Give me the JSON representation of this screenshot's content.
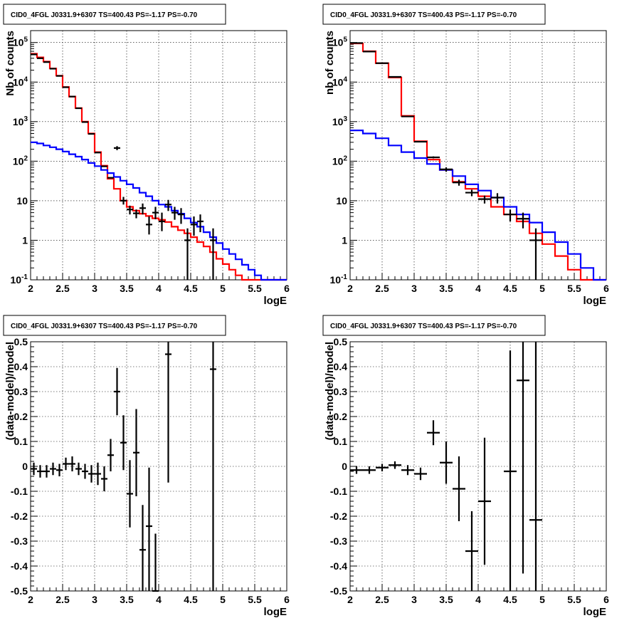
{
  "colors": {
    "model": "#ff0000",
    "background": "#0000ff",
    "data": "#000000"
  },
  "chart_data": [
    {
      "id": "p1",
      "type": "line",
      "title": "CID0_4FGL J0331.9+6307 TS=400.43 PS=-1.17 PS=-0.70",
      "xlabel": "logE",
      "ylabel": "Nb of counts",
      "log_y": true,
      "grid": true,
      "xlim": [
        2,
        6
      ],
      "ylim": [
        0.1,
        200000
      ],
      "x_ticks": [
        2,
        2.5,
        3,
        3.5,
        4,
        4.5,
        5,
        5.5,
        6
      ],
      "x_tick_labels": [
        "2",
        "2.5",
        "3",
        "3.5",
        "4",
        "4.5",
        "5",
        "5.5",
        "6"
      ],
      "y_ticks": [
        0.1,
        1,
        10,
        100,
        1000,
        10000,
        100000
      ],
      "y_tick_labels": [
        "10^-1",
        "1",
        "10",
        "10^2",
        "10^3",
        "10^4",
        "10^5"
      ],
      "bin_width": 0.1,
      "series": [
        {
          "role": "model",
          "color": "#ff0000",
          "x": [
            2.0,
            2.1,
            2.2,
            2.3,
            2.4,
            2.5,
            2.6,
            2.7,
            2.8,
            2.9,
            3.0,
            3.1,
            3.2,
            3.3,
            3.4,
            3.5,
            3.6,
            3.7,
            3.8,
            3.9,
            4.0,
            4.1,
            4.2,
            4.3,
            4.4,
            4.5,
            4.6,
            4.7,
            4.8,
            4.9,
            5.0,
            5.1,
            5.2,
            5.3,
            5.4,
            5.5,
            5.6,
            5.7,
            5.8,
            5.9
          ],
          "values": [
            52000,
            42000,
            33000,
            22000,
            14500,
            7500,
            4300,
            2200,
            1000,
            500,
            170,
            77,
            36,
            20,
            10,
            7,
            5.6,
            4.7,
            4.1,
            3.6,
            3.3,
            2.9,
            2.2,
            1.8,
            1.5,
            1.2,
            0.9,
            0.7,
            0.5,
            0.34,
            0.25,
            0.18,
            0.13,
            0.1,
            0.1,
            0.1,
            0.1,
            0.1,
            0.1,
            0.1
          ]
        },
        {
          "role": "background",
          "color": "#0000ff",
          "x": [
            2.0,
            2.1,
            2.2,
            2.3,
            2.4,
            2.5,
            2.6,
            2.7,
            2.8,
            2.9,
            3.0,
            3.1,
            3.2,
            3.3,
            3.4,
            3.5,
            3.6,
            3.7,
            3.8,
            3.9,
            4.0,
            4.1,
            4.2,
            4.3,
            4.4,
            4.5,
            4.6,
            4.7,
            4.8,
            4.9,
            5.0,
            5.1,
            5.2,
            5.3,
            5.4,
            5.5,
            5.6,
            5.7,
            5.8,
            5.9
          ],
          "values": [
            300,
            280,
            250,
            225,
            200,
            175,
            150,
            130,
            110,
            90,
            75,
            60,
            50,
            40,
            32,
            26,
            21,
            16,
            13,
            10,
            8,
            7,
            5.6,
            4.7,
            3.6,
            2.8,
            2.2,
            1.6,
            1.2,
            0.85,
            0.6,
            0.45,
            0.33,
            0.24,
            0.18,
            0.13,
            0.1,
            0.1,
            0.1,
            0.1
          ]
        },
        {
          "role": "data",
          "type": "scatter",
          "color": "#000000",
          "x": [
            2.05,
            2.15,
            2.25,
            2.35,
            2.45,
            2.55,
            2.65,
            2.75,
            2.85,
            2.95,
            3.05,
            3.15,
            3.25,
            3.35,
            3.45,
            3.55,
            3.65,
            3.75,
            3.85,
            3.95,
            4.05,
            4.15,
            4.25,
            4.35,
            4.45,
            4.55,
            4.65,
            4.85
          ],
          "values": [
            50000,
            40000,
            32000,
            21800,
            14300,
            7400,
            4300,
            2180,
            975,
            490,
            165,
            74,
            38,
            215,
            10,
            6,
            4.8,
            6.5,
            2.5,
            5,
            3,
            8,
            5,
            4.5,
            1,
            2.5,
            3,
            1
          ],
          "y_low": [
            50000,
            40000,
            32000,
            21800,
            14300,
            7400,
            4300,
            2180,
            975,
            490,
            165,
            74,
            38,
            190,
            8,
            4.5,
            3.6,
            4.5,
            1.4,
            3.4,
            1.7,
            5.5,
            3.3,
            2.6,
            0.1,
            1.3,
            1.6,
            0.1
          ],
          "y_high": [
            50000,
            40000,
            32000,
            21800,
            14300,
            7400,
            4300,
            2180,
            975,
            490,
            165,
            74,
            38,
            240,
            12.5,
            7.5,
            6,
            8.5,
            4,
            7,
            5,
            10.5,
            7,
            6.5,
            2,
            4,
            4.5,
            2
          ]
        }
      ]
    },
    {
      "id": "p2",
      "type": "line",
      "title": "CID0_4FGL J0331.9+6307 TS=400.43 PS=-1.17 PS=-0.70",
      "xlabel": "logE",
      "ylabel": "nb of counts",
      "log_y": true,
      "grid": true,
      "xlim": [
        2,
        6
      ],
      "ylim": [
        0.1,
        200000
      ],
      "x_ticks": [
        2,
        2.5,
        3,
        3.5,
        4,
        4.5,
        5,
        5.5,
        6
      ],
      "x_tick_labels": [
        "2",
        "2.5",
        "3",
        "3.5",
        "4",
        "4.5",
        "5",
        "5.5",
        "6"
      ],
      "y_ticks": [
        0.1,
        1,
        10,
        100,
        1000,
        10000,
        100000
      ],
      "y_tick_labels": [
        "10^-1",
        "1",
        "10",
        "10^2",
        "10^3",
        "10^4",
        "10^5"
      ],
      "bin_width": 0.2,
      "series": [
        {
          "role": "model",
          "color": "#ff0000",
          "x": [
            2.0,
            2.2,
            2.4,
            2.6,
            2.8,
            3.0,
            3.2,
            3.4,
            3.6,
            3.8,
            4.0,
            4.2,
            4.4,
            4.6,
            4.8,
            5.0,
            5.2,
            5.4,
            5.6,
            5.8
          ],
          "values": [
            95000,
            60000,
            30000,
            13000,
            1400,
            320,
            110,
            60,
            30,
            20,
            13,
            7,
            4.5,
            3,
            1.5,
            0.8,
            0.4,
            0.18,
            0.1,
            0.1
          ]
        },
        {
          "role": "background",
          "color": "#0000ff",
          "x": [
            2.0,
            2.2,
            2.4,
            2.6,
            2.8,
            3.0,
            3.2,
            3.4,
            3.6,
            3.8,
            4.0,
            4.2,
            4.4,
            4.6,
            4.8,
            5.0,
            5.2,
            5.4,
            5.6,
            5.8
          ],
          "values": [
            600,
            500,
            380,
            250,
            170,
            120,
            85,
            60,
            42,
            26,
            18,
            12,
            7,
            4.5,
            2.8,
            1.6,
            0.9,
            0.45,
            0.2,
            0.1
          ]
        },
        {
          "role": "data",
          "type": "scatter",
          "color": "#000000",
          "x": [
            2.1,
            2.3,
            2.5,
            2.7,
            2.9,
            3.1,
            3.3,
            3.5,
            3.7,
            3.9,
            4.1,
            4.3,
            4.5,
            4.7,
            4.9
          ],
          "values": [
            97000,
            59000,
            30000,
            13500,
            1350,
            310,
            125,
            62,
            29,
            16,
            11,
            12,
            4.5,
            3.5,
            1
          ],
          "y_low": [
            97000,
            59000,
            30000,
            13500,
            1350,
            310,
            118,
            54,
            24,
            13,
            8.5,
            8.5,
            3,
            2,
            0.1
          ],
          "y_high": [
            97000,
            59000,
            30000,
            13500,
            1350,
            310,
            132,
            70,
            34,
            19,
            13.5,
            15.5,
            6,
            5,
            2
          ]
        }
      ]
    },
    {
      "id": "p3",
      "type": "scatter",
      "title": "CID0_4FGL J0331.9+6307 TS=400.43 PS=-1.17 PS=-0.70",
      "xlabel": "logE",
      "ylabel": "(data-model)/model",
      "log_y": false,
      "grid": true,
      "xlim": [
        2,
        6
      ],
      "ylim": [
        -0.5,
        0.5
      ],
      "x_ticks": [
        2,
        2.5,
        3,
        3.5,
        4,
        4.5,
        5,
        5.5,
        6
      ],
      "x_tick_labels": [
        "2",
        "2.5",
        "3",
        "3.5",
        "4",
        "4.5",
        "5",
        "5.5",
        "6"
      ],
      "y_ticks": [
        -0.5,
        -0.4,
        -0.3,
        -0.2,
        -0.1,
        0,
        0.1,
        0.2,
        0.3,
        0.4,
        0.5
      ],
      "y_tick_labels": [
        "-0.5",
        "-0.4",
        "-0.3",
        "-0.2",
        "-0.1",
        "0",
        "0.1",
        "0.2",
        "0.3",
        "0.4",
        "0.5"
      ],
      "bin_width": 0.1,
      "series": [
        {
          "role": "data",
          "color": "#000000",
          "x": [
            2.05,
            2.15,
            2.25,
            2.35,
            2.45,
            2.55,
            2.65,
            2.75,
            2.85,
            2.95,
            3.05,
            3.15,
            3.25,
            3.35,
            3.45,
            3.55,
            3.65,
            3.75,
            3.85,
            3.95,
            4.15,
            4.85
          ],
          "values": [
            -0.01,
            -0.02,
            -0.02,
            -0.01,
            -0.015,
            0.01,
            0.01,
            -0.01,
            -0.02,
            -0.03,
            -0.03,
            -0.05,
            0.045,
            0.3,
            0.095,
            -0.11,
            0.055,
            -0.335,
            -0.24,
            -0.5,
            0.45,
            0.39
          ],
          "y_low": [
            -0.035,
            -0.045,
            -0.045,
            -0.035,
            -0.04,
            -0.015,
            -0.02,
            -0.035,
            -0.05,
            -0.065,
            -0.075,
            -0.1,
            -0.02,
            0.205,
            -0.015,
            -0.245,
            -0.12,
            -0.5,
            -0.5,
            -0.5,
            -0.065,
            -0.5
          ],
          "y_high": [
            0.015,
            0.005,
            0.005,
            0.015,
            0.01,
            0.035,
            0.04,
            0.015,
            0.01,
            0.005,
            0.015,
            0.0,
            0.11,
            0.395,
            0.205,
            0.025,
            0.23,
            -0.155,
            -0.005,
            -0.27,
            0.5,
            0.5
          ]
        }
      ]
    },
    {
      "id": "p4",
      "type": "scatter",
      "title": "CID0_4FGL J0331.9+6307 TS=400.43 PS=-1.17 PS=-0.70",
      "xlabel": "logE",
      "ylabel": "(data-model)/model",
      "log_y": false,
      "grid": true,
      "xlim": [
        2,
        6
      ],
      "ylim": [
        -0.5,
        0.5
      ],
      "x_ticks": [
        2,
        2.5,
        3,
        3.5,
        4,
        4.5,
        5,
        5.5,
        6
      ],
      "x_tick_labels": [
        "2",
        "2.5",
        "3",
        "3.5",
        "4",
        "4.5",
        "5",
        "5.5",
        "6"
      ],
      "y_ticks": [
        -0.5,
        -0.4,
        -0.3,
        -0.2,
        -0.1,
        0,
        0.1,
        0.2,
        0.3,
        0.4,
        0.5
      ],
      "y_tick_labels": [
        "-0.5",
        "-0.4",
        "-0.3",
        "-0.2",
        "-0.1",
        "0",
        "0.1",
        "0.2",
        "0.3",
        "0.4",
        "0.5"
      ],
      "bin_width": 0.2,
      "series": [
        {
          "role": "data",
          "color": "#000000",
          "x": [
            2.1,
            2.3,
            2.5,
            2.7,
            2.9,
            3.1,
            3.3,
            3.5,
            3.7,
            3.9,
            4.1,
            4.5,
            4.7,
            4.9
          ],
          "values": [
            -0.015,
            -0.015,
            -0.005,
            0.005,
            -0.015,
            -0.03,
            0.135,
            0.015,
            -0.09,
            -0.34,
            -0.14,
            -0.02,
            0.345,
            -0.215
          ],
          "y_low": [
            -0.03,
            -0.03,
            -0.02,
            -0.01,
            -0.035,
            -0.055,
            0.085,
            -0.07,
            -0.22,
            -0.5,
            -0.395,
            -0.5,
            -0.43,
            -0.5
          ],
          "y_high": [
            0.0,
            0.0,
            0.01,
            0.02,
            0.005,
            -0.005,
            0.185,
            0.1,
            0.04,
            -0.18,
            0.115,
            0.465,
            0.5,
            0.5
          ]
        }
      ]
    }
  ]
}
